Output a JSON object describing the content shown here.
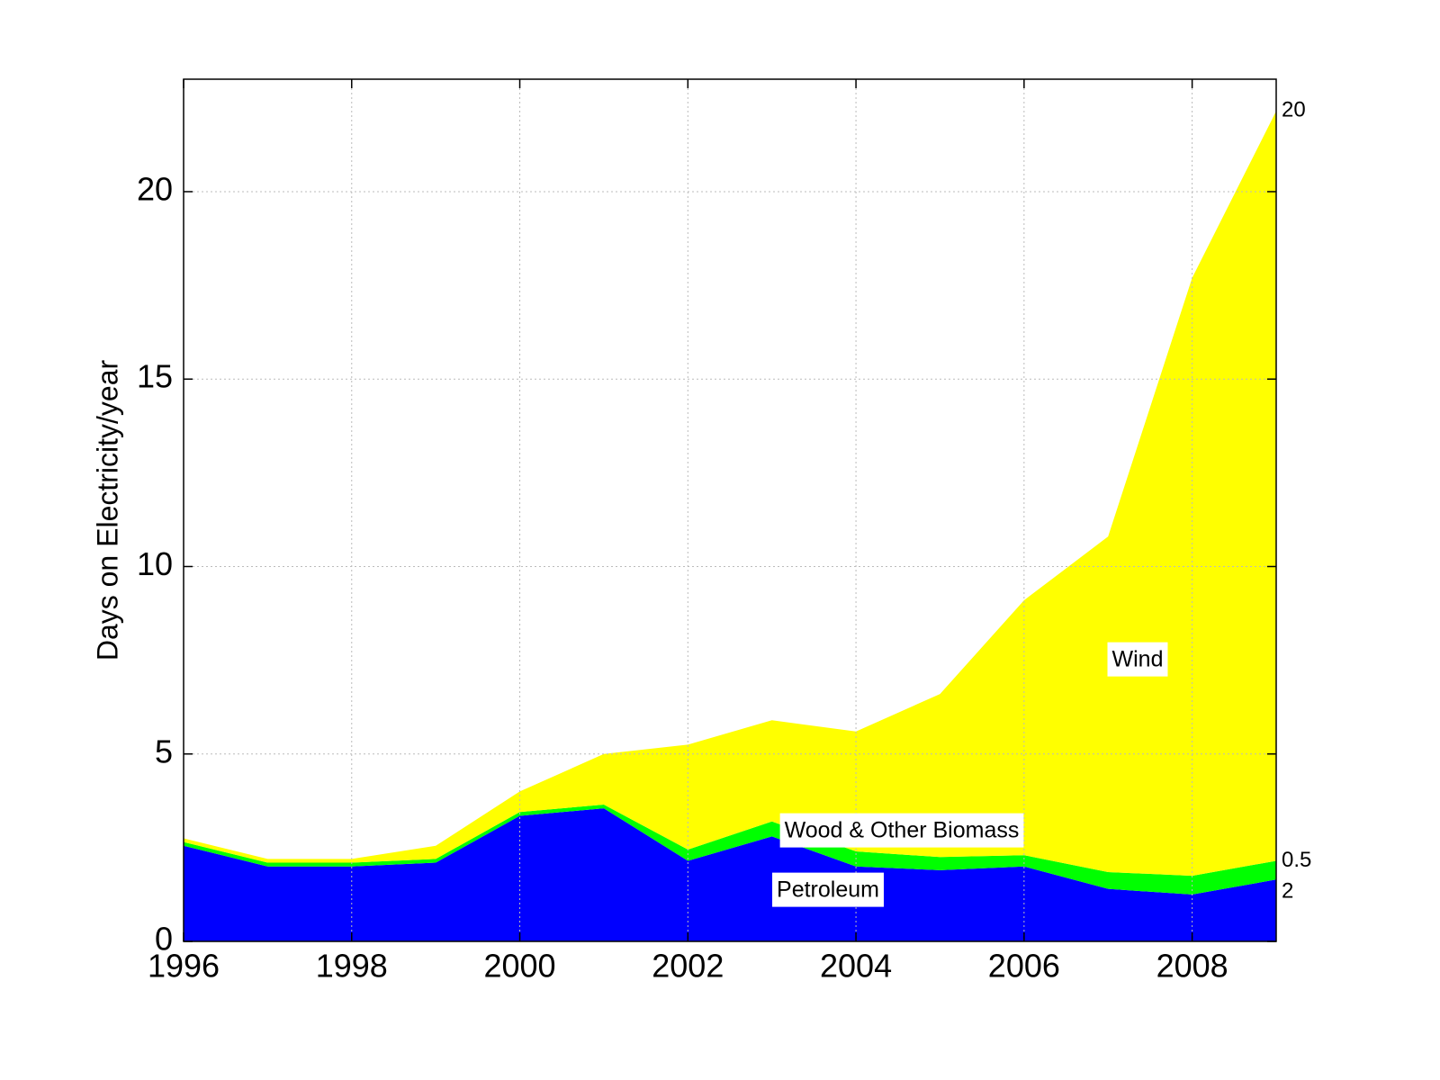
{
  "chart_data": {
    "type": "stacked-area",
    "y_label": "Days on Electricity/year",
    "x": [
      1996,
      1997,
      1998,
      1999,
      2000,
      2001,
      2002,
      2003,
      2004,
      2005,
      2006,
      2007,
      2008,
      2009
    ],
    "series": [
      {
        "name": "Petroleum",
        "color": "#0000ff",
        "end_label": "2",
        "values": [
          2.55,
          2.0,
          2.0,
          2.1,
          3.35,
          3.55,
          2.15,
          2.8,
          2.0,
          1.9,
          2.0,
          1.4,
          1.25,
          1.65
        ]
      },
      {
        "name": "Wood & Other Biomass",
        "color": "#00ff00",
        "end_label": "0.5",
        "values": [
          0.1,
          0.1,
          0.1,
          0.1,
          0.1,
          0.1,
          0.3,
          0.4,
          0.4,
          0.35,
          0.3,
          0.45,
          0.5,
          0.5
        ]
      },
      {
        "name": "Wind",
        "color": "#ffff00",
        "end_label": "20",
        "values": [
          0.1,
          0.1,
          0.1,
          0.35,
          0.55,
          1.35,
          2.8,
          2.7,
          3.2,
          4.35,
          6.8,
          8.95,
          15.95,
          20.0
        ]
      }
    ],
    "xlim": [
      1996,
      2009
    ],
    "xticks": [
      1996,
      1998,
      2000,
      2002,
      2004,
      2006,
      2008
    ],
    "ylim": [
      0,
      23
    ],
    "yticks": [
      0,
      5,
      10,
      15,
      20
    ],
    "grid": true
  }
}
